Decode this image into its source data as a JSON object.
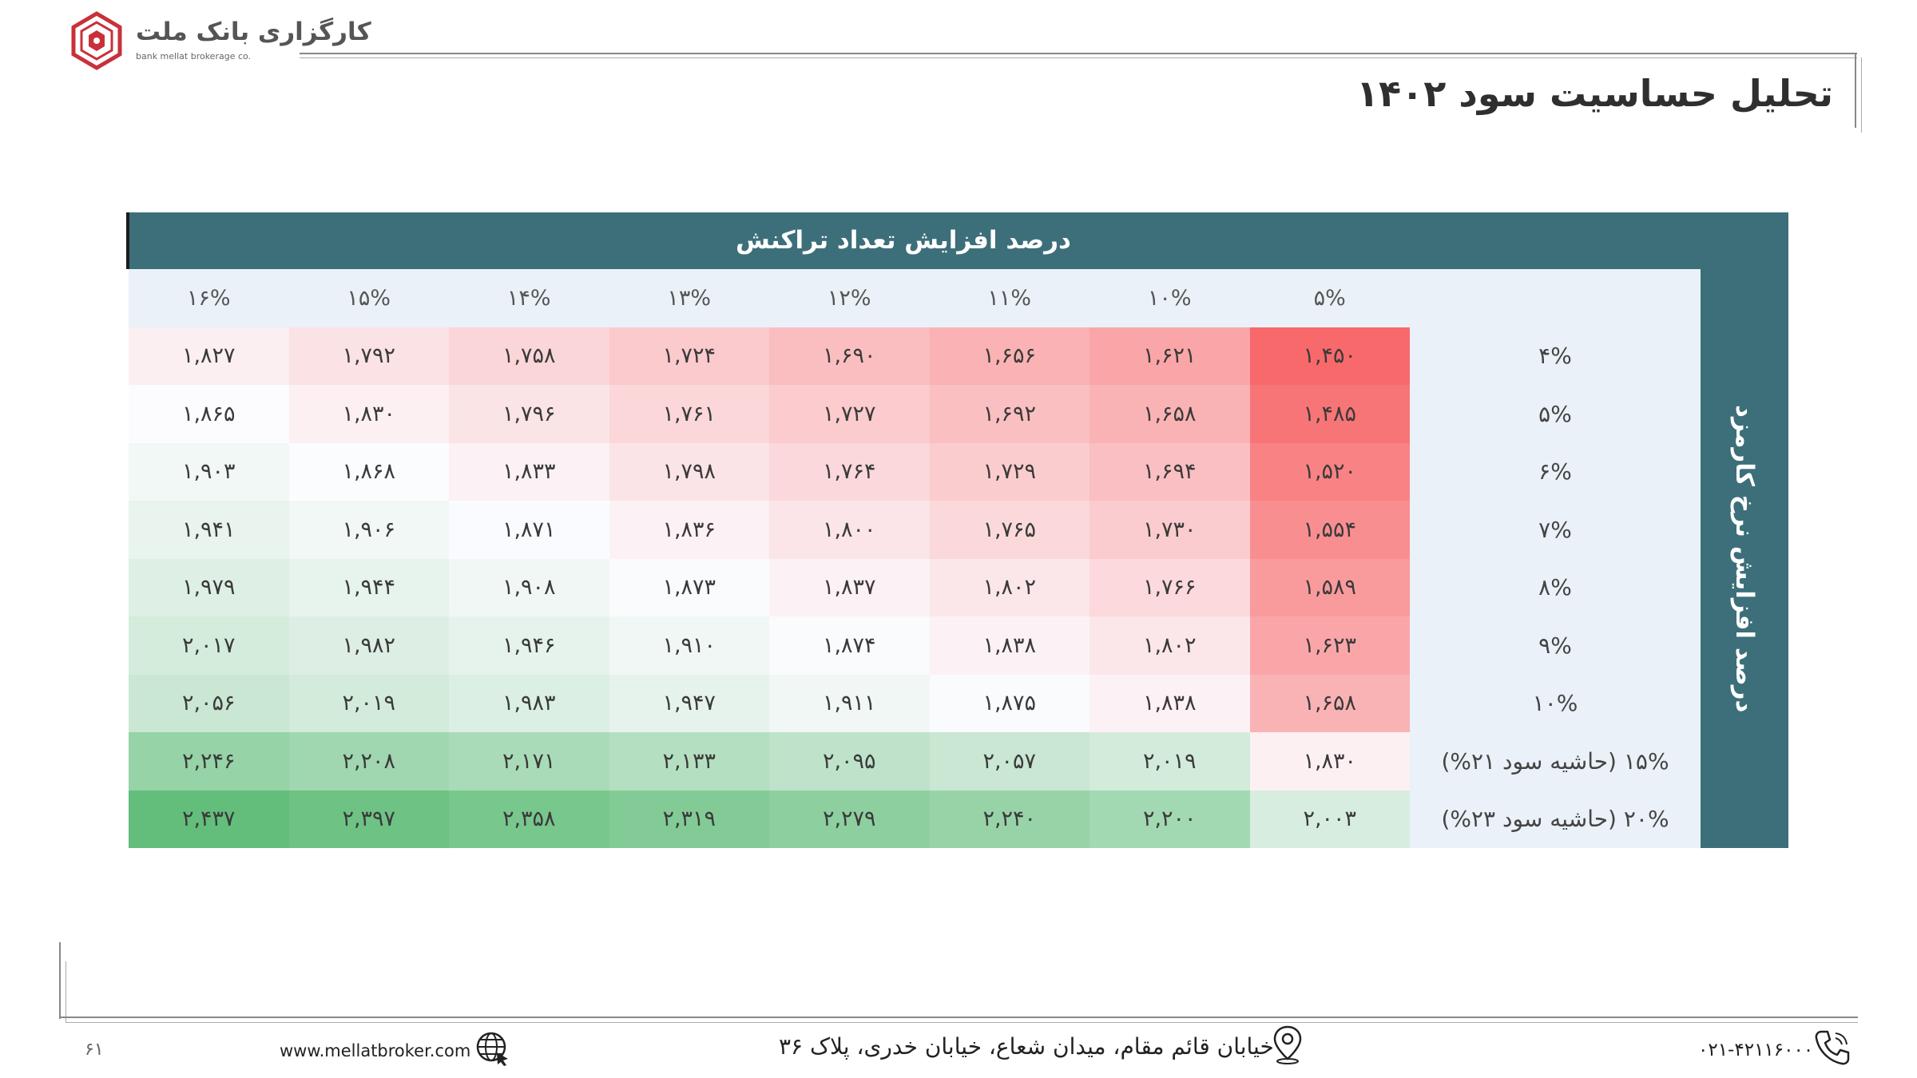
{
  "brand": {
    "name_fa": "کارگزاری بانک ملت",
    "name_en": "bank mellat brokerage co."
  },
  "page": {
    "title": "تحلیل حساسیت سود ۱۴۰۲",
    "number": "۶۱"
  },
  "table": {
    "column_axis_title": "درصد افزایش تعداد تراکنش",
    "row_axis_title": "درصد افزایش نرخ کارمزد",
    "columns": [
      "۱۶%",
      "۱۵%",
      "۱۴%",
      "۱۳%",
      "۱۲%",
      "۱۱%",
      "۱۰%",
      "۵%"
    ],
    "rows": [
      {
        "label": "۴%",
        "values": [
          "۱,۸۲۷",
          "۱,۷۹۲",
          "۱,۷۵۸",
          "۱,۷۲۴",
          "۱,۶۹۰",
          "۱,۶۵۶",
          "۱,۶۲۱",
          "۱,۴۵۰"
        ]
      },
      {
        "label": "۵%",
        "values": [
          "۱,۸۶۵",
          "۱,۸۳۰",
          "۱,۷۹۶",
          "۱,۷۶۱",
          "۱,۷۲۷",
          "۱,۶۹۲",
          "۱,۶۵۸",
          "۱,۴۸۵"
        ]
      },
      {
        "label": "۶%",
        "values": [
          "۱,۹۰۳",
          "۱,۸۶۸",
          "۱,۸۳۳",
          "۱,۷۹۸",
          "۱,۷۶۴",
          "۱,۷۲۹",
          "۱,۶۹۴",
          "۱,۵۲۰"
        ]
      },
      {
        "label": "۷%",
        "values": [
          "۱,۹۴۱",
          "۱,۹۰۶",
          "۱,۸۷۱",
          "۱,۸۳۶",
          "۱,۸۰۰",
          "۱,۷۶۵",
          "۱,۷۳۰",
          "۱,۵۵۴"
        ]
      },
      {
        "label": "۸%",
        "values": [
          "۱,۹۷۹",
          "۱,۹۴۴",
          "۱,۹۰۸",
          "۱,۸۷۳",
          "۱,۸۳۷",
          "۱,۸۰۲",
          "۱,۷۶۶",
          "۱,۵۸۹"
        ]
      },
      {
        "label": "۹%",
        "values": [
          "۲,۰۱۷",
          "۱,۹۸۲",
          "۱,۹۴۶",
          "۱,۹۱۰",
          "۱,۸۷۴",
          "۱,۸۳۸",
          "۱,۸۰۲",
          "۱,۶۲۳"
        ]
      },
      {
        "label": "۱۰%",
        "values": [
          "۲,۰۵۶",
          "۲,۰۱۹",
          "۱,۹۸۳",
          "۱,۹۴۷",
          "۱,۹۱۱",
          "۱,۸۷۵",
          "۱,۸۳۸",
          "۱,۶۵۸"
        ]
      },
      {
        "label": "۱۵% (حاشیه سود ۲۱%)",
        "values": [
          "۲,۲۴۶",
          "۲,۲۰۸",
          "۲,۱۷۱",
          "۲,۱۳۳",
          "۲,۰۹۵",
          "۲,۰۵۷",
          "۲,۰۱۹",
          "۱,۸۳۰"
        ]
      },
      {
        "label": "۲۰% (حاشیه سود ۲۳%)",
        "values": [
          "۲,۴۳۷",
          "۲,۳۹۷",
          "۲,۳۵۸",
          "۲,۳۱۹",
          "۲,۲۷۹",
          "۲,۲۴۰",
          "۲,۲۰۰",
          "۲,۰۰۳"
        ]
      }
    ],
    "heat_values": [
      [
        1827,
        1792,
        1758,
        1724,
        1690,
        1656,
        1621,
        1450
      ],
      [
        1865,
        1830,
        1796,
        1761,
        1727,
        1692,
        1658,
        1485
      ],
      [
        1903,
        1868,
        1833,
        1798,
        1764,
        1729,
        1694,
        1520
      ],
      [
        1941,
        1906,
        1871,
        1836,
        1800,
        1765,
        1730,
        1554
      ],
      [
        1979,
        1944,
        1908,
        1873,
        1837,
        1802,
        1766,
        1589
      ],
      [
        2017,
        1982,
        1946,
        1910,
        1874,
        1838,
        1802,
        1623
      ],
      [
        2056,
        2019,
        1983,
        1947,
        1911,
        1875,
        1838,
        1658
      ],
      [
        2246,
        2208,
        2171,
        2133,
        2095,
        2057,
        2019,
        1830
      ],
      [
        2437,
        2397,
        2358,
        2319,
        2279,
        2240,
        2200,
        2003
      ]
    ],
    "heat_colors": {
      "low": "#f8696b",
      "mid": "#fcfcff",
      "high": "#63be7b"
    }
  },
  "footer": {
    "website": "www.mellatbroker.com",
    "address": "خیابان قائم مقام، میدان شعاع، خیابان خدری، پلاک ۳۶",
    "phone": "۰۲۱-۴۲۱۱۶۰۰۰",
    "icons": [
      "globe-icon",
      "location-pin-icon",
      "phone-icon"
    ]
  }
}
